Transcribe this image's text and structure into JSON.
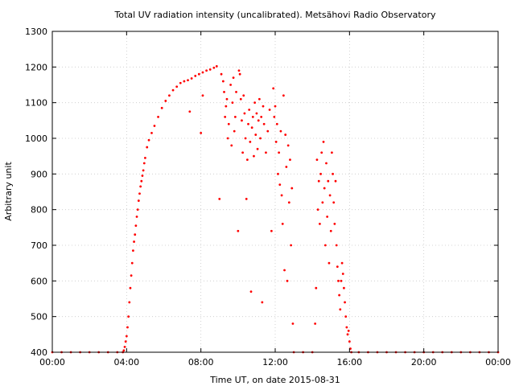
{
  "chart_data": {
    "type": "scatter",
    "title": "Total UV radiation intensity (uncalibrated). Metsähovi Radio Observatory",
    "xlabel": "Time UT, on date 2015-08-31",
    "ylabel": "Arbitrary unit",
    "xlim": [
      0,
      24
    ],
    "ylim": [
      400,
      1300
    ],
    "x_ticks": [
      0,
      4,
      8,
      12,
      16,
      20,
      24
    ],
    "x_tick_labels": [
      "00:00",
      "04:00",
      "08:00",
      "12:00",
      "16:00",
      "20:00",
      "00:00"
    ],
    "y_ticks": [
      400,
      500,
      600,
      700,
      800,
      900,
      1000,
      1100,
      1200,
      1300
    ],
    "grid": true,
    "legend": "none",
    "marker_color": "#ff0000",
    "series": [
      {
        "x_units": "hours UT",
        "points": [
          [
            0.0,
            400
          ],
          [
            0.5,
            400
          ],
          [
            1.0,
            400
          ],
          [
            1.5,
            400
          ],
          [
            2.0,
            400
          ],
          [
            2.5,
            400
          ],
          [
            3.0,
            400
          ],
          [
            3.5,
            400
          ],
          [
            3.8,
            400
          ],
          [
            3.85,
            405
          ],
          [
            3.9,
            415
          ],
          [
            3.95,
            430
          ],
          [
            4.0,
            445
          ],
          [
            4.05,
            470
          ],
          [
            4.1,
            500
          ],
          [
            4.15,
            540
          ],
          [
            4.2,
            580
          ],
          [
            4.25,
            615
          ],
          [
            4.3,
            650
          ],
          [
            4.35,
            685
          ],
          [
            4.4,
            710
          ],
          [
            4.45,
            730
          ],
          [
            4.5,
            755
          ],
          [
            4.55,
            780
          ],
          [
            4.6,
            800
          ],
          [
            4.65,
            825
          ],
          [
            4.7,
            845
          ],
          [
            4.75,
            865
          ],
          [
            4.8,
            880
          ],
          [
            4.85,
            895
          ],
          [
            4.9,
            910
          ],
          [
            4.95,
            930
          ],
          [
            5.0,
            945
          ],
          [
            5.1,
            975
          ],
          [
            5.2,
            995
          ],
          [
            5.35,
            1015
          ],
          [
            5.5,
            1035
          ],
          [
            5.7,
            1060
          ],
          [
            5.9,
            1085
          ],
          [
            6.1,
            1105
          ],
          [
            6.3,
            1120
          ],
          [
            6.5,
            1135
          ],
          [
            6.7,
            1145
          ],
          [
            6.9,
            1155
          ],
          [
            7.1,
            1160
          ],
          [
            7.3,
            1163
          ],
          [
            7.5,
            1168
          ],
          [
            7.7,
            1175
          ],
          [
            7.9,
            1180
          ],
          [
            8.1,
            1185
          ],
          [
            8.3,
            1190
          ],
          [
            8.5,
            1193
          ],
          [
            8.7,
            1198
          ],
          [
            8.85,
            1202
          ],
          [
            7.4,
            1075
          ],
          [
            8.0,
            1015
          ],
          [
            8.1,
            1120
          ],
          [
            9.0,
            830
          ],
          [
            9.1,
            1180
          ],
          [
            9.2,
            1160
          ],
          [
            9.25,
            1130
          ],
          [
            9.3,
            1060
          ],
          [
            9.35,
            1090
          ],
          [
            9.4,
            1110
          ],
          [
            9.45,
            1000
          ],
          [
            9.5,
            1040
          ],
          [
            9.6,
            1150
          ],
          [
            9.65,
            980
          ],
          [
            9.7,
            1100
          ],
          [
            9.75,
            1170
          ],
          [
            9.8,
            1020
          ],
          [
            9.85,
            1060
          ],
          [
            9.9,
            1130
          ],
          [
            10.0,
            740
          ],
          [
            10.05,
            1190
          ],
          [
            10.1,
            1180
          ],
          [
            10.15,
            1110
          ],
          [
            10.2,
            1050
          ],
          [
            10.25,
            960
          ],
          [
            10.3,
            1120
          ],
          [
            10.35,
            1070
          ],
          [
            10.4,
            1000
          ],
          [
            10.45,
            830
          ],
          [
            10.5,
            940
          ],
          [
            10.55,
            1040
          ],
          [
            10.6,
            1080
          ],
          [
            10.65,
            990
          ],
          [
            10.7,
            570
          ],
          [
            10.75,
            1030
          ],
          [
            10.8,
            1060
          ],
          [
            10.85,
            950
          ],
          [
            10.9,
            1100
          ],
          [
            10.95,
            1010
          ],
          [
            11.0,
            1070
          ],
          [
            11.05,
            970
          ],
          [
            11.1,
            1050
          ],
          [
            11.15,
            1110
          ],
          [
            11.2,
            1000
          ],
          [
            11.25,
            1060
          ],
          [
            11.3,
            540
          ],
          [
            11.35,
            1090
          ],
          [
            11.4,
            1040
          ],
          [
            11.5,
            960
          ],
          [
            11.6,
            1020
          ],
          [
            11.7,
            1080
          ],
          [
            11.8,
            740
          ],
          [
            11.9,
            1140
          ],
          [
            11.95,
            1060
          ],
          [
            12.0,
            1090
          ],
          [
            12.05,
            990
          ],
          [
            12.1,
            1040
          ],
          [
            12.15,
            900
          ],
          [
            12.2,
            960
          ],
          [
            12.25,
            870
          ],
          [
            12.3,
            1020
          ],
          [
            12.35,
            840
          ],
          [
            12.4,
            760
          ],
          [
            12.45,
            1120
          ],
          [
            12.5,
            630
          ],
          [
            12.55,
            1010
          ],
          [
            12.6,
            920
          ],
          [
            12.65,
            600
          ],
          [
            12.7,
            980
          ],
          [
            12.75,
            820
          ],
          [
            12.8,
            940
          ],
          [
            12.85,
            700
          ],
          [
            12.9,
            860
          ],
          [
            12.95,
            480
          ],
          [
            13.0,
            400
          ],
          [
            13.5,
            400
          ],
          [
            14.0,
            400
          ],
          [
            14.15,
            480
          ],
          [
            14.2,
            580
          ],
          [
            14.25,
            940
          ],
          [
            14.3,
            800
          ],
          [
            14.35,
            880
          ],
          [
            14.4,
            760
          ],
          [
            14.45,
            900
          ],
          [
            14.5,
            960
          ],
          [
            14.55,
            820
          ],
          [
            14.6,
            990
          ],
          [
            14.65,
            860
          ],
          [
            14.7,
            700
          ],
          [
            14.75,
            930
          ],
          [
            14.8,
            780
          ],
          [
            14.85,
            880
          ],
          [
            14.9,
            650
          ],
          [
            14.95,
            840
          ],
          [
            15.0,
            740
          ],
          [
            15.05,
            960
          ],
          [
            15.1,
            900
          ],
          [
            15.15,
            820
          ],
          [
            15.2,
            760
          ],
          [
            15.25,
            880
          ],
          [
            15.3,
            700
          ],
          [
            15.35,
            640
          ],
          [
            15.4,
            600
          ],
          [
            15.45,
            560
          ],
          [
            15.5,
            520
          ],
          [
            15.55,
            600
          ],
          [
            15.6,
            650
          ],
          [
            15.65,
            620
          ],
          [
            15.7,
            580
          ],
          [
            15.75,
            540
          ],
          [
            15.8,
            500
          ],
          [
            15.85,
            470
          ],
          [
            15.9,
            450
          ],
          [
            15.95,
            460
          ],
          [
            16.0,
            430
          ],
          [
            16.05,
            410
          ],
          [
            16.1,
            400
          ],
          [
            16.5,
            400
          ],
          [
            17.0,
            400
          ],
          [
            17.5,
            400
          ],
          [
            18.0,
            400
          ],
          [
            18.5,
            400
          ],
          [
            19.0,
            400
          ],
          [
            19.5,
            400
          ],
          [
            20.0,
            400
          ],
          [
            20.5,
            400
          ],
          [
            21.0,
            400
          ],
          [
            21.5,
            400
          ],
          [
            22.0,
            400
          ],
          [
            22.5,
            400
          ],
          [
            23.0,
            400
          ],
          [
            23.5,
            400
          ],
          [
            24.0,
            400
          ]
        ]
      }
    ]
  }
}
